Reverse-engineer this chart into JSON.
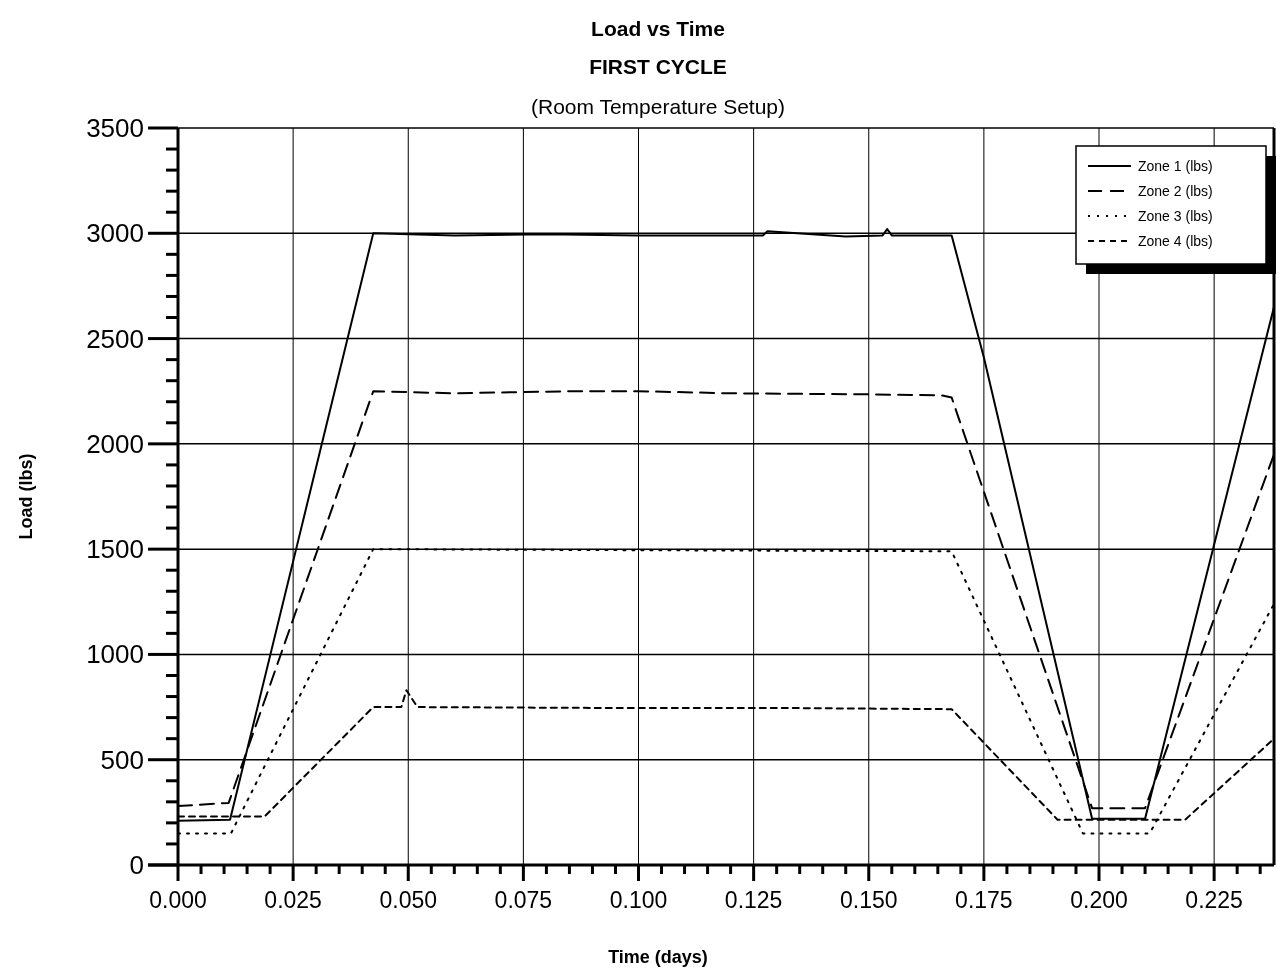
{
  "chart_data": {
    "type": "line",
    "title": "Load vs Time",
    "subtitle": "FIRST CYCLE",
    "annotations": [
      "(Room Temperature Setup)"
    ],
    "xlabel": "Time (days)",
    "ylabel": "Load (lbs)",
    "xlim": [
      0,
      0.238
    ],
    "ylim": [
      0,
      3500
    ],
    "xticks": [
      {
        "value": 0,
        "label": "0.000"
      },
      {
        "value": 0.005,
        "label": null
      },
      {
        "value": 0.01,
        "label": null
      },
      {
        "value": 0.015,
        "label": null
      },
      {
        "value": 0.02,
        "label": null
      },
      {
        "value": 0.025,
        "label": "0.025"
      },
      {
        "value": 0.03,
        "label": null
      },
      {
        "value": 0.035,
        "label": null
      },
      {
        "value": 0.04,
        "label": null
      },
      {
        "value": 0.045,
        "label": null
      },
      {
        "value": 0.05,
        "label": "0.050"
      },
      {
        "value": 0.055,
        "label": null
      },
      {
        "value": 0.06,
        "label": null
      },
      {
        "value": 0.065,
        "label": null
      },
      {
        "value": 0.07,
        "label": null
      },
      {
        "value": 0.075,
        "label": "0.075"
      },
      {
        "value": 0.08,
        "label": null
      },
      {
        "value": 0.085,
        "label": null
      },
      {
        "value": 0.09,
        "label": null
      },
      {
        "value": 0.095,
        "label": null
      },
      {
        "value": 0.1,
        "label": "0.100"
      },
      {
        "value": 0.105,
        "label": null
      },
      {
        "value": 0.11,
        "label": null
      },
      {
        "value": 0.115,
        "label": null
      },
      {
        "value": 0.12,
        "label": null
      },
      {
        "value": 0.125,
        "label": "0.125"
      },
      {
        "value": 0.13,
        "label": null
      },
      {
        "value": 0.135,
        "label": null
      },
      {
        "value": 0.14,
        "label": null
      },
      {
        "value": 0.145,
        "label": null
      },
      {
        "value": 0.15,
        "label": "0.150"
      },
      {
        "value": 0.155,
        "label": null
      },
      {
        "value": 0.16,
        "label": null
      },
      {
        "value": 0.165,
        "label": null
      },
      {
        "value": 0.17,
        "label": null
      },
      {
        "value": 0.175,
        "label": "0.175"
      },
      {
        "value": 0.18,
        "label": null
      },
      {
        "value": 0.185,
        "label": null
      },
      {
        "value": 0.19,
        "label": null
      },
      {
        "value": 0.195,
        "label": null
      },
      {
        "value": 0.2,
        "label": "0.200"
      },
      {
        "value": 0.205,
        "label": null
      },
      {
        "value": 0.21,
        "label": null
      },
      {
        "value": 0.215,
        "label": null
      },
      {
        "value": 0.22,
        "label": null
      },
      {
        "value": 0.225,
        "label": "0.225"
      },
      {
        "value": 0.23,
        "label": null
      },
      {
        "value": 0.235,
        "label": null
      }
    ],
    "yticks": [
      0,
      {
        "value": 100,
        "label": null
      },
      {
        "value": 200,
        "label": null
      },
      {
        "value": 300,
        "label": null
      },
      {
        "value": 400,
        "label": null
      },
      500,
      {
        "value": 600,
        "label": null
      },
      {
        "value": 700,
        "label": null
      },
      {
        "value": 800,
        "label": null
      },
      {
        "value": 900,
        "label": null
      },
      1000,
      {
        "value": 1100,
        "label": null
      },
      {
        "value": 1200,
        "label": null
      },
      {
        "value": 1300,
        "label": null
      },
      {
        "value": 1400,
        "label": null
      },
      1500,
      {
        "value": 1600,
        "label": null
      },
      {
        "value": 1700,
        "label": null
      },
      {
        "value": 1800,
        "label": null
      },
      {
        "value": 1900,
        "label": null
      },
      2000,
      {
        "value": 2100,
        "label": null
      },
      {
        "value": 2200,
        "label": null
      },
      {
        "value": 2300,
        "label": null
      },
      {
        "value": 2400,
        "label": null
      },
      2500,
      {
        "value": 2600,
        "label": null
      },
      {
        "value": 2700,
        "label": null
      },
      {
        "value": 2800,
        "label": null
      },
      {
        "value": 2900,
        "label": null
      },
      3000,
      {
        "value": 3100,
        "label": null
      },
      {
        "value": 3200,
        "label": null
      },
      {
        "value": 3300,
        "label": null
      },
      {
        "value": 3400,
        "label": null
      },
      3500
    ],
    "grid": true,
    "legend": "top right",
    "series": [
      {
        "name": "Zone 1 (lbs)",
        "color": "#000000",
        "line_style": "solid",
        "x": [
          0,
          0.0113,
          0.0424,
          0.06,
          0.08,
          0.1,
          0.127,
          0.128,
          0.145,
          0.153,
          0.154,
          0.155,
          0.168,
          0.175,
          0.1985,
          0.21,
          0.238
        ],
        "values": [
          210,
          215,
          3000,
          2990,
          2995,
          2990,
          2990,
          3010,
          2985,
          2990,
          3020,
          2990,
          2990,
          2410,
          220,
          220,
          2650
        ]
      },
      {
        "name": "Zone 2 (lbs)",
        "color": "#000000",
        "line_style": "dashed",
        "x": [
          0,
          0.011,
          0.0424,
          0.06,
          0.085,
          0.1,
          0.12,
          0.15,
          0.166,
          0.168,
          0.1985,
          0.21,
          0.238
        ],
        "values": [
          280,
          295,
          2250,
          2240,
          2250,
          2250,
          2240,
          2235,
          2230,
          2220,
          270,
          270,
          1950
        ]
      },
      {
        "name": "Zone 3 (lbs)",
        "color": "#000000",
        "line_style": "dotted",
        "x": [
          0,
          0.0115,
          0.0424,
          0.1,
          0.168,
          0.1965,
          0.211,
          0.238
        ],
        "values": [
          150,
          150,
          1500,
          1495,
          1490,
          150,
          150,
          1240
        ]
      },
      {
        "name": "Zone 4 (lbs)",
        "color": "#000000",
        "line_style": "short-dashed",
        "x": [
          0,
          0.0188,
          0.0424,
          0.0485,
          0.0496,
          0.052,
          0.1,
          0.135,
          0.168,
          0.191,
          0.2187,
          0.238
        ],
        "values": [
          230,
          230,
          750,
          750,
          830,
          750,
          745,
          745,
          740,
          215,
          215,
          600
        ]
      }
    ]
  }
}
